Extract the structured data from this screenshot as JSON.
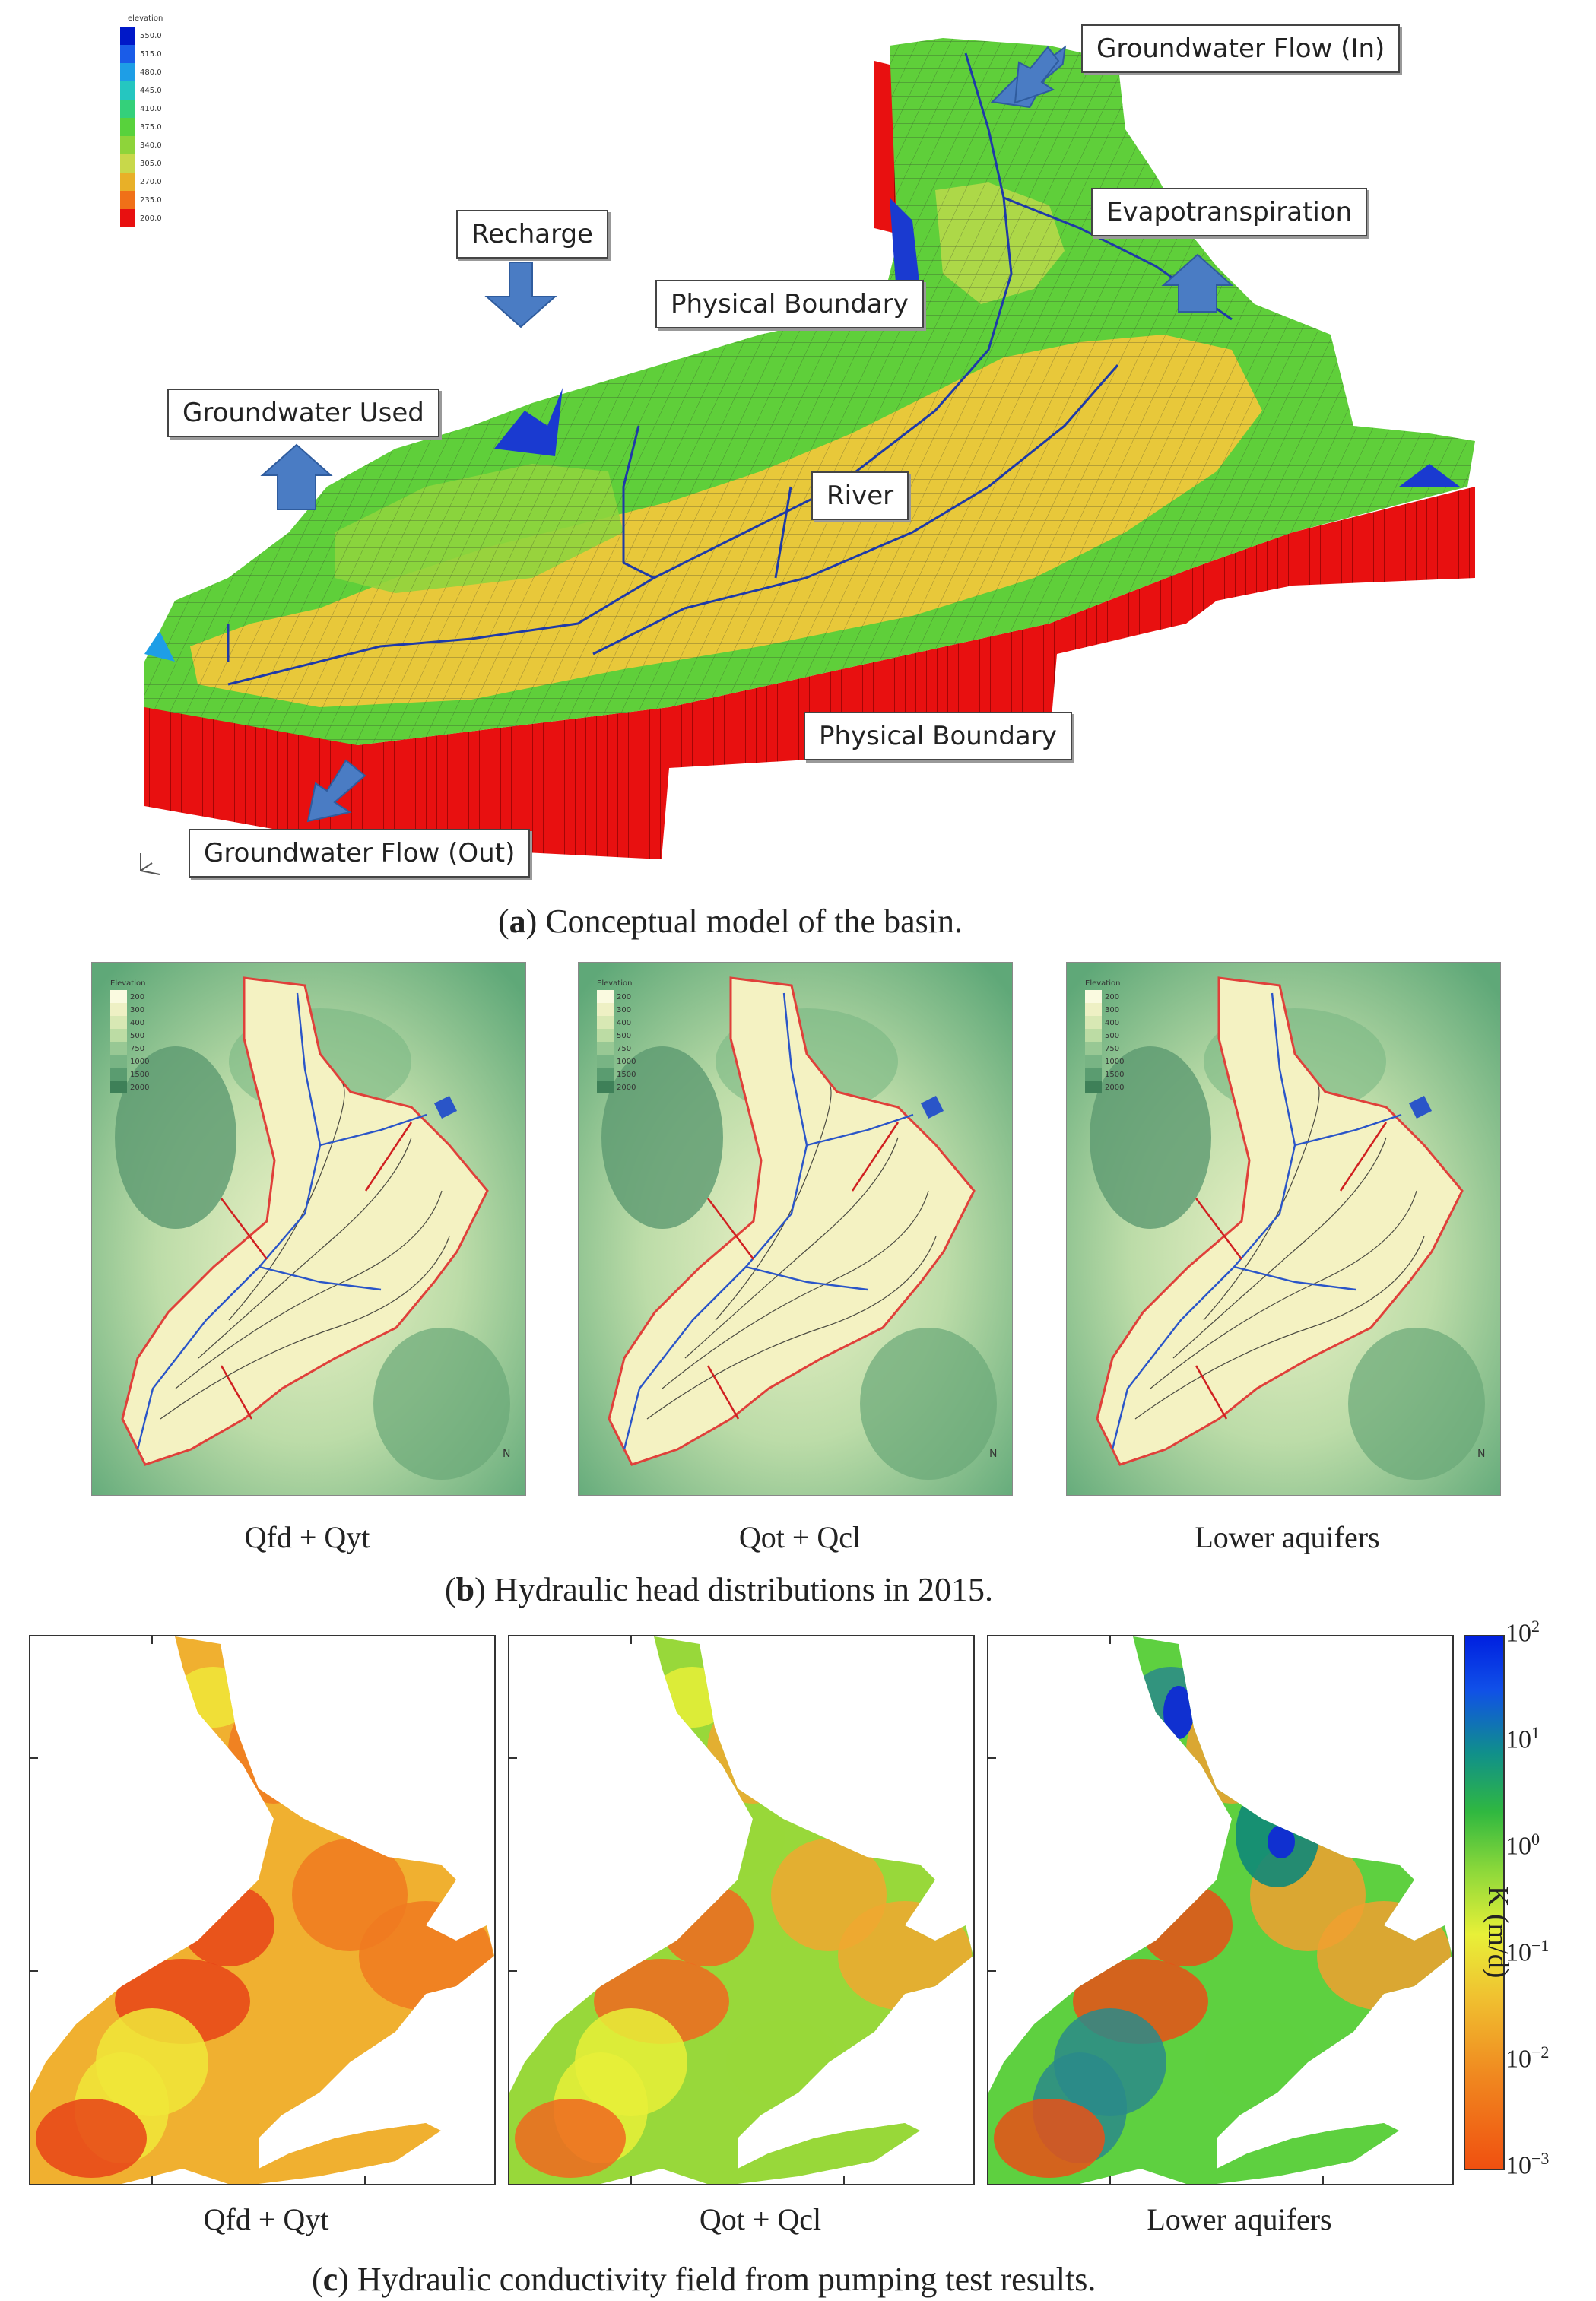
{
  "panel_a": {
    "legend_title": "elevation",
    "legend_values": [
      "550.0",
      "515.0",
      "480.0",
      "445.0",
      "410.0",
      "375.0",
      "340.0",
      "305.0",
      "270.0",
      "235.0",
      "200.0"
    ],
    "legend_colors": [
      "#0018c8",
      "#1a5ce8",
      "#1e9ee6",
      "#25c6c0",
      "#34d07a",
      "#58d23c",
      "#8ed43a",
      "#c8d84a",
      "#e8b028",
      "#f07018",
      "#e81010"
    ],
    "callouts": {
      "gw_in": "Groundwater Flow (In)",
      "evapo": "Evapotranspiration",
      "recharge": "Recharge",
      "phys_top": "Physical Boundary",
      "gw_used": "Groundwater Used",
      "river": "River",
      "phys_bottom": "Physical Boundary",
      "gw_out": "Groundwater Flow (Out)"
    },
    "caption_letter": "a",
    "caption_text": " Conceptual model of the basin."
  },
  "panel_b": {
    "legend_title": "Elevation",
    "legend_values": [
      "200",
      "300",
      "400",
      "500",
      "750",
      "1000",
      "1500",
      "2000"
    ],
    "maps": [
      {
        "label": "Qfd + Qyt"
      },
      {
        "label": "Qot + Qcl"
      },
      {
        "label": "Lower aquifers"
      }
    ],
    "caption_letter": "b",
    "caption_text": " Hydraulic head distributions in 2015."
  },
  "panel_c": {
    "maps": [
      {
        "label": "Qfd + Qyt",
        "level": 0.25
      },
      {
        "label": "Qot + Qcl",
        "level": 0.5
      },
      {
        "label": "Lower aquifers",
        "level": 0.7
      }
    ],
    "colorbar": {
      "title": "K (m/d)",
      "ticks": [
        {
          "base": "10",
          "exp": "2"
        },
        {
          "base": "10",
          "exp": "1"
        },
        {
          "base": "10",
          "exp": "0"
        },
        {
          "base": "10",
          "exp": "−1"
        },
        {
          "base": "10",
          "exp": "−2"
        },
        {
          "base": "10",
          "exp": "−3"
        }
      ]
    },
    "caption_letter": "c",
    "caption_text": " Hydraulic conductivity field from pumping test results."
  },
  "colors": {
    "arrow_blue": "#4a7cc4",
    "river_blue": "#1e3aa8",
    "boundary_red": "#e0403a"
  }
}
